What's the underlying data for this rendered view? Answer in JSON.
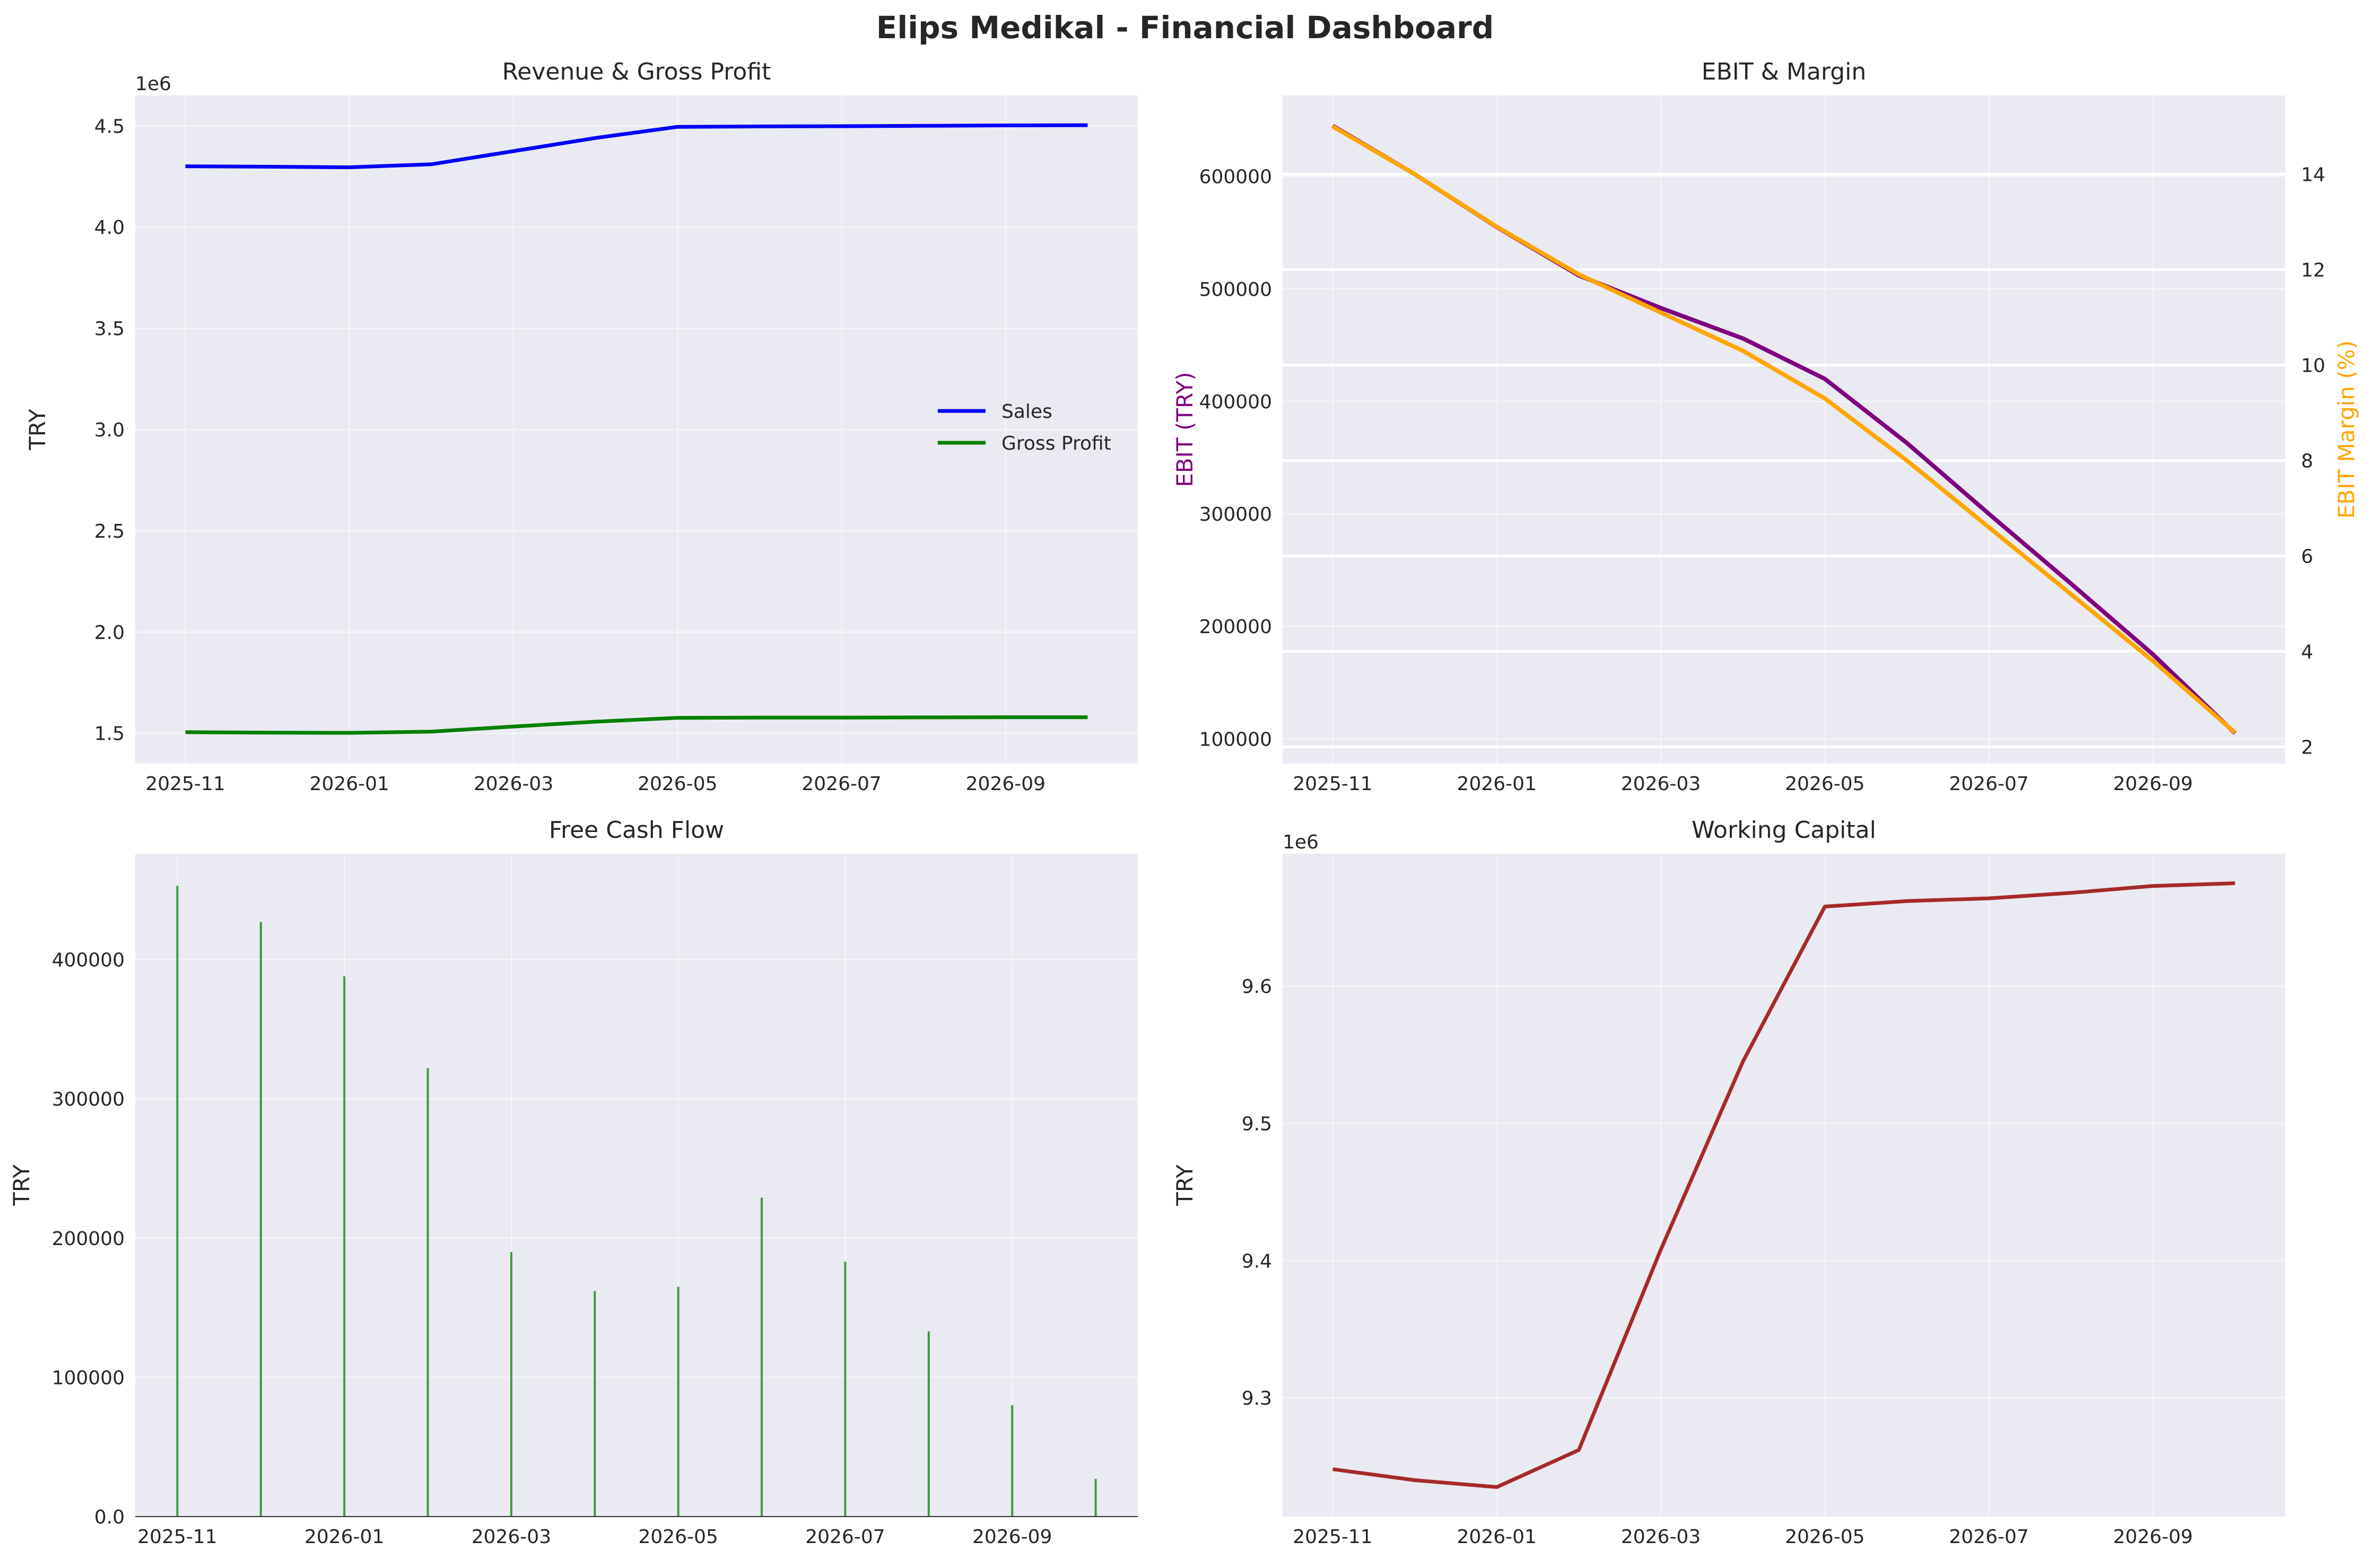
{
  "suptitle": "Elips Medikal - Financial Dashboard",
  "colors": {
    "panel_bg": "#eaeaf2",
    "grid": "#ffffff",
    "text": "#262626",
    "sales": "#0000ff",
    "gross_profit": "#008000",
    "ebit": "#800080",
    "ebit_margin": "#ffa500",
    "fcf": "#008000",
    "working_capital": "#a52a2a"
  },
  "x_tick_labels": [
    "2025-11",
    "2026-01",
    "2026-03",
    "2026-05",
    "2026-07",
    "2026-09"
  ],
  "chart_data": [
    {
      "type": "line",
      "title": "Revenue & Gross Profit",
      "xlabel": "",
      "ylabel": "TRY",
      "y_offset_label": "1e6",
      "x": [
        "2025-11",
        "2025-12",
        "2026-01",
        "2026-02",
        "2026-03",
        "2026-04",
        "2026-05",
        "2026-06",
        "2026-07",
        "2026-08",
        "2026-09",
        "2026-10"
      ],
      "series": [
        {
          "name": "Sales",
          "values": [
            4.3,
            4.298,
            4.295,
            4.31,
            4.375,
            4.44,
            4.495,
            4.497,
            4.498,
            4.5,
            4.502,
            4.503
          ]
        },
        {
          "name": "Gross Profit",
          "values": [
            1.505,
            1.503,
            1.502,
            1.508,
            1.533,
            1.557,
            1.576,
            1.577,
            1.577,
            1.578,
            1.579,
            1.579
          ]
        }
      ],
      "yticks": [
        1.5,
        2.0,
        2.5,
        3.0,
        3.5,
        4.0,
        4.5
      ],
      "ylim": [
        1.35,
        4.65
      ],
      "legend": "center-right",
      "grid": true
    },
    {
      "type": "line",
      "title": "EBIT & Margin",
      "xlabel": "",
      "ylabel": "EBIT (TRY)",
      "ylabel_right": "EBIT Margin (%)",
      "x": [
        "2025-11",
        "2025-12",
        "2026-01",
        "2026-02",
        "2026-03",
        "2026-04",
        "2026-05",
        "2026-06",
        "2026-07",
        "2026-08",
        "2026-09",
        "2026-10"
      ],
      "series": [
        {
          "name": "EBIT",
          "axis": "left",
          "values": [
            645000,
            602000,
            555000,
            512000,
            483000,
            456000,
            420000,
            363000,
            300000,
            238000,
            175000,
            105000
          ]
        },
        {
          "name": "EBIT Margin",
          "axis": "right",
          "values": [
            15.0,
            14.0,
            12.9,
            11.9,
            11.1,
            10.3,
            9.3,
            8.0,
            6.6,
            5.2,
            3.8,
            2.3
          ]
        }
      ],
      "yticks": [
        100000,
        200000,
        300000,
        400000,
        500000,
        600000
      ],
      "ylim": [
        78000,
        672000
      ],
      "yticks_right": [
        2,
        4,
        6,
        8,
        10,
        12,
        14
      ],
      "ylim_right": [
        1.65,
        15.65
      ],
      "grid": true
    },
    {
      "type": "bar",
      "title": "Free Cash Flow",
      "xlabel": "",
      "ylabel": "TRY",
      "x": [
        "2025-11",
        "2025-12",
        "2026-01",
        "2026-02",
        "2026-03",
        "2026-04",
        "2026-05",
        "2026-06",
        "2026-07",
        "2026-08",
        "2026-09",
        "2026-10"
      ],
      "values": [
        453000,
        427000,
        388000,
        322000,
        190000,
        162000,
        165000,
        229000,
        183000,
        133000,
        80000,
        27000
      ],
      "yticks": [
        0,
        100000,
        200000,
        300000,
        400000
      ],
      "ylim": [
        0,
        476000
      ],
      "grid": true
    },
    {
      "type": "line",
      "title": "Working Capital",
      "xlabel": "",
      "ylabel": "TRY",
      "y_offset_label": "1e6",
      "x": [
        "2025-11",
        "2025-12",
        "2026-01",
        "2026-02",
        "2026-03",
        "2026-04",
        "2026-05",
        "2026-06",
        "2026-07",
        "2026-08",
        "2026-09",
        "2026-10"
      ],
      "values": [
        9.248,
        9.24,
        9.235,
        9.262,
        9.408,
        9.545,
        9.658,
        9.662,
        9.664,
        9.668,
        9.673,
        9.675
      ],
      "yticks": [
        9.3,
        9.4,
        9.5,
        9.6
      ],
      "ylim": [
        9.2135,
        9.6965
      ],
      "grid": true
    }
  ]
}
